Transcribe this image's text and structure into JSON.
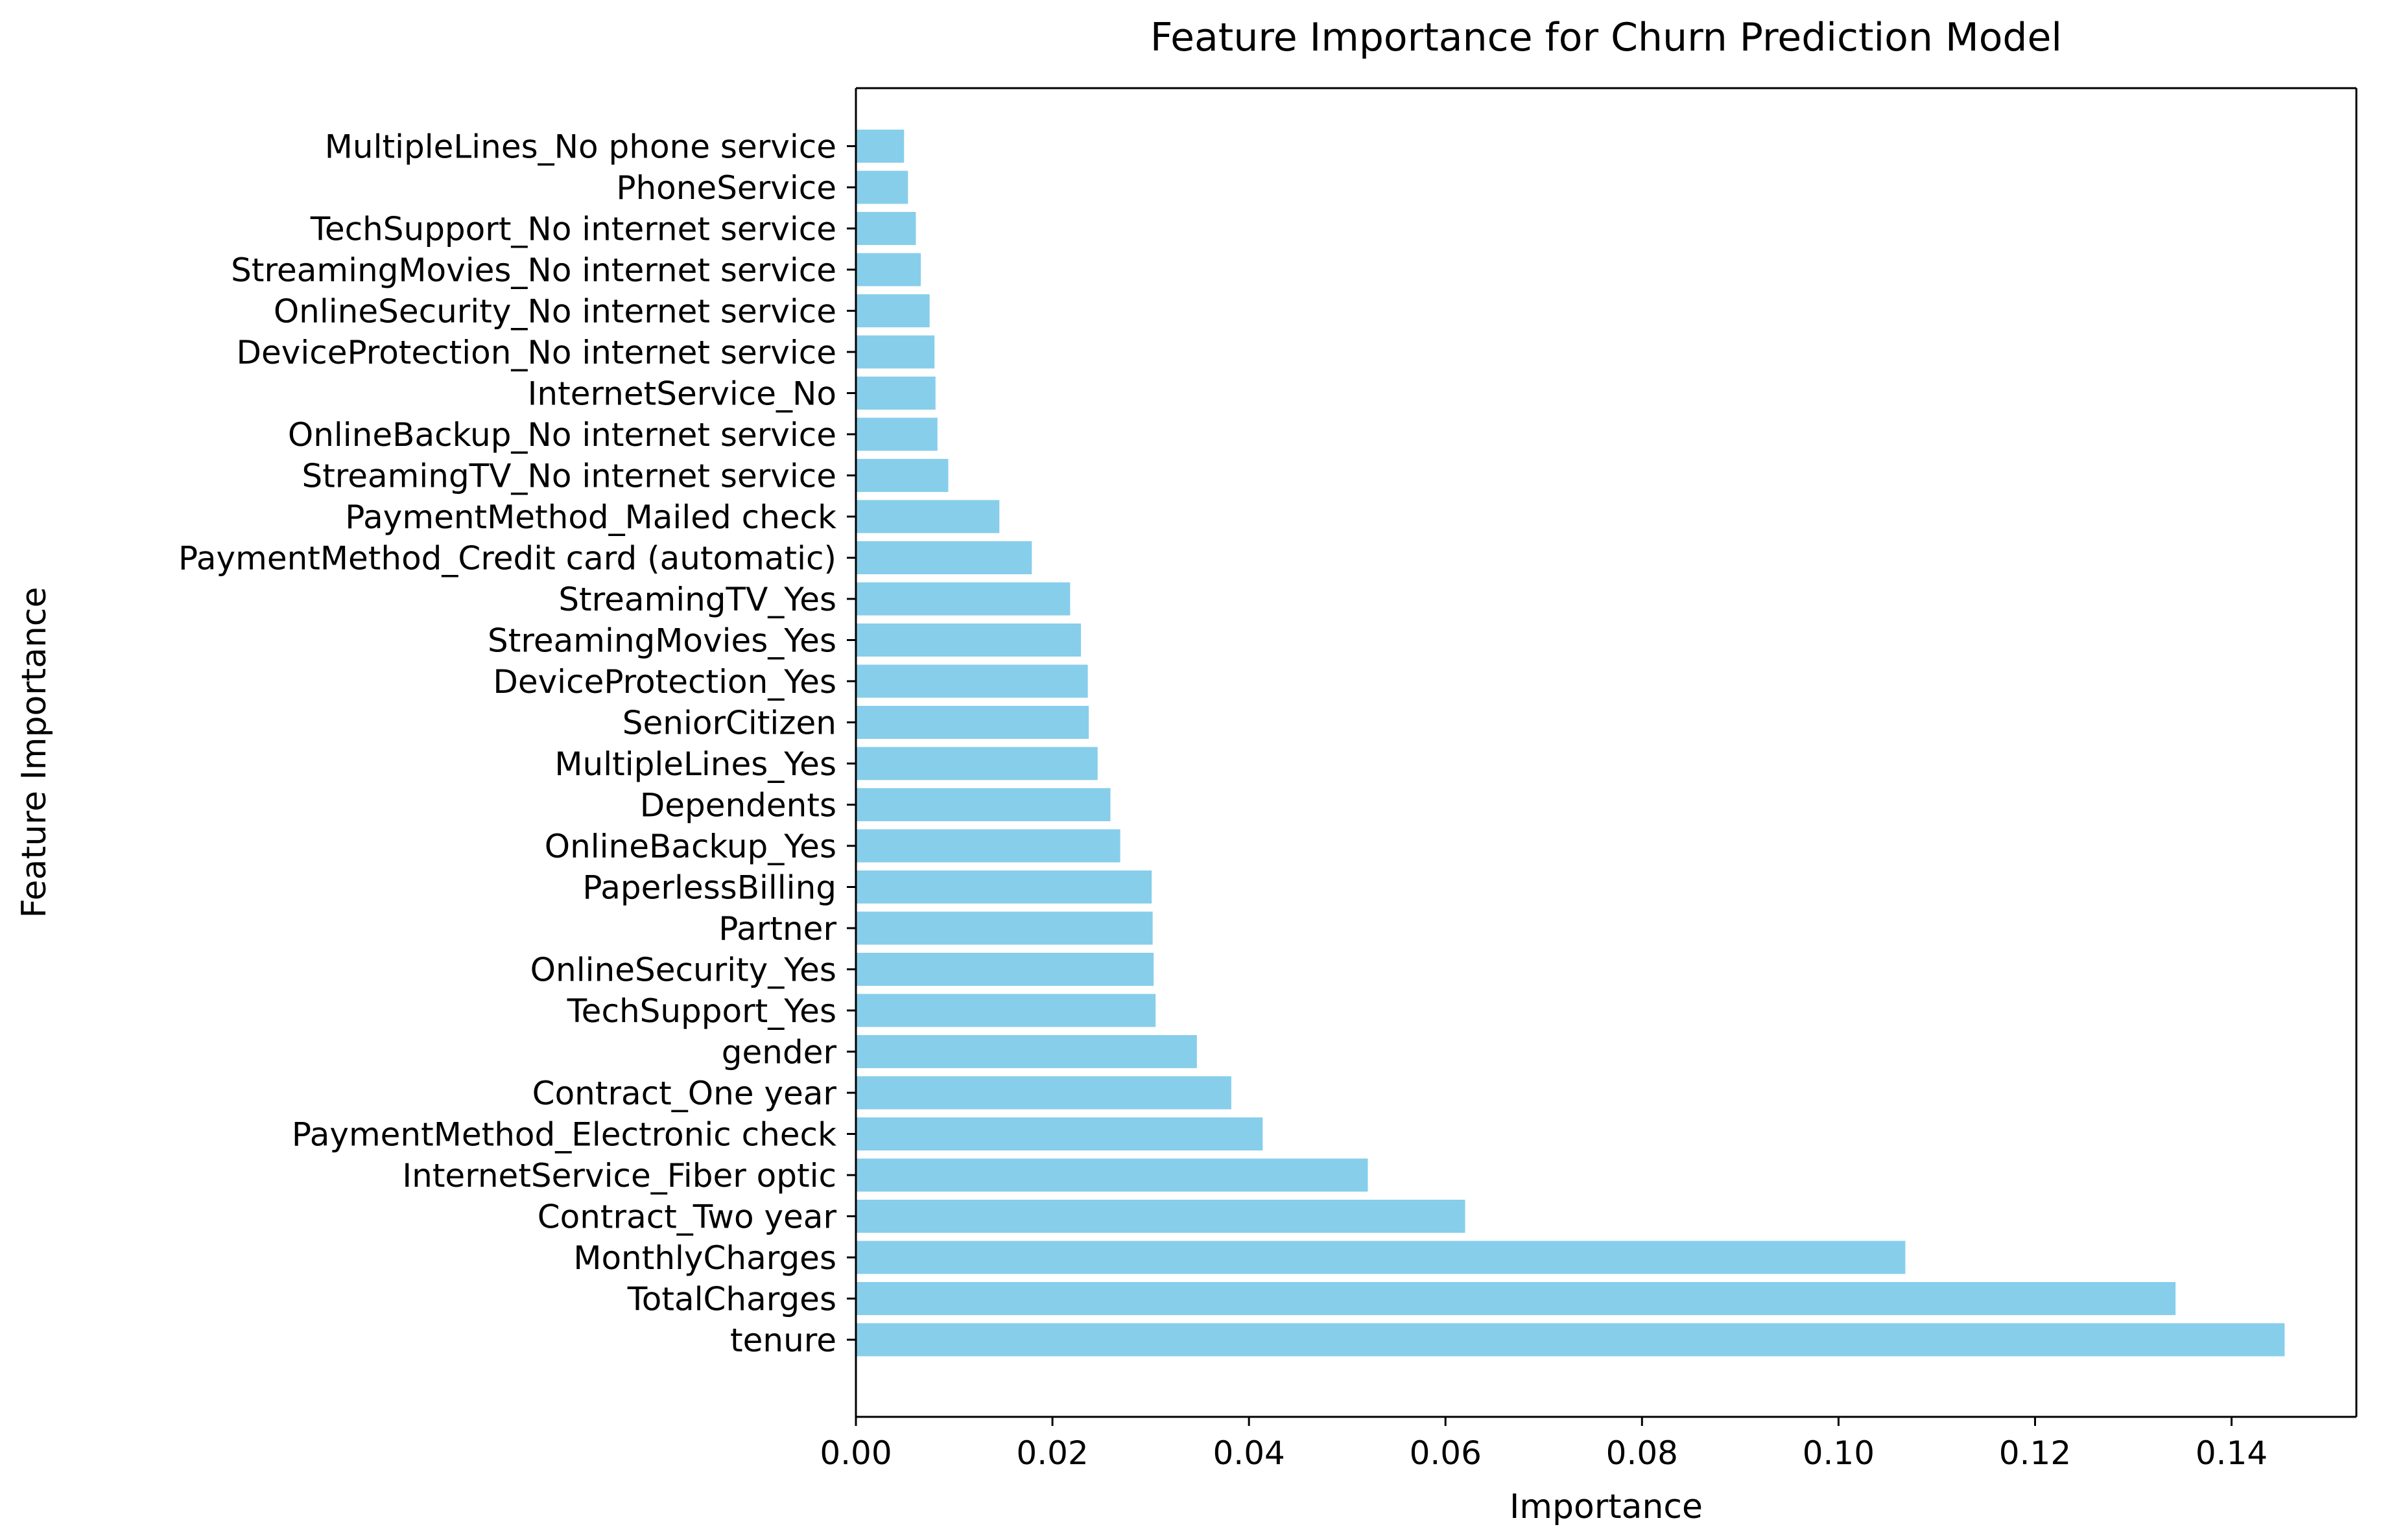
{
  "chart_data": {
    "type": "bar",
    "orientation": "horizontal",
    "title": "Feature Importance for Churn Prediction Model",
    "xlabel": "Importance",
    "ylabel": "Feature Importance",
    "xlim": [
      0,
      0.1527
    ],
    "xticks": [
      0.0,
      0.02,
      0.04,
      0.06,
      0.08,
      0.1,
      0.12,
      0.14
    ],
    "xtick_labels": [
      "0.00",
      "0.02",
      "0.04",
      "0.06",
      "0.08",
      "0.10",
      "0.12",
      "0.14"
    ],
    "grid": false,
    "bar_color": "#87CEEB",
    "categories": [
      "tenure",
      "TotalCharges",
      "MonthlyCharges",
      "Contract_Two year",
      "InternetService_Fiber optic",
      "PaymentMethod_Electronic check",
      "Contract_One year",
      "gender",
      "TechSupport_Yes",
      "OnlineSecurity_Yes",
      "Partner",
      "PaperlessBilling",
      "OnlineBackup_Yes",
      "Dependents",
      "MultipleLines_Yes",
      "SeniorCitizen",
      "DeviceProtection_Yes",
      "StreamingMovies_Yes",
      "StreamingTV_Yes",
      "PaymentMethod_Credit card (automatic)",
      "PaymentMethod_Mailed check",
      "StreamingTV_No internet service",
      "OnlineBackup_No internet service",
      "InternetService_No",
      "DeviceProtection_No internet service",
      "OnlineSecurity_No internet service",
      "StreamingMovies_No internet service",
      "TechSupport_No internet service",
      "PhoneService",
      "MultipleLines_No phone service"
    ],
    "values": [
      0.1454,
      0.1343,
      0.1068,
      0.062,
      0.0521,
      0.0414,
      0.0382,
      0.0347,
      0.0305,
      0.0303,
      0.0302,
      0.0301,
      0.0269,
      0.0259,
      0.0246,
      0.0237,
      0.0236,
      0.0229,
      0.0218,
      0.0179,
      0.0146,
      0.0094,
      0.0083,
      0.0081,
      0.008,
      0.0075,
      0.0066,
      0.0061,
      0.0053,
      0.0049
    ]
  }
}
